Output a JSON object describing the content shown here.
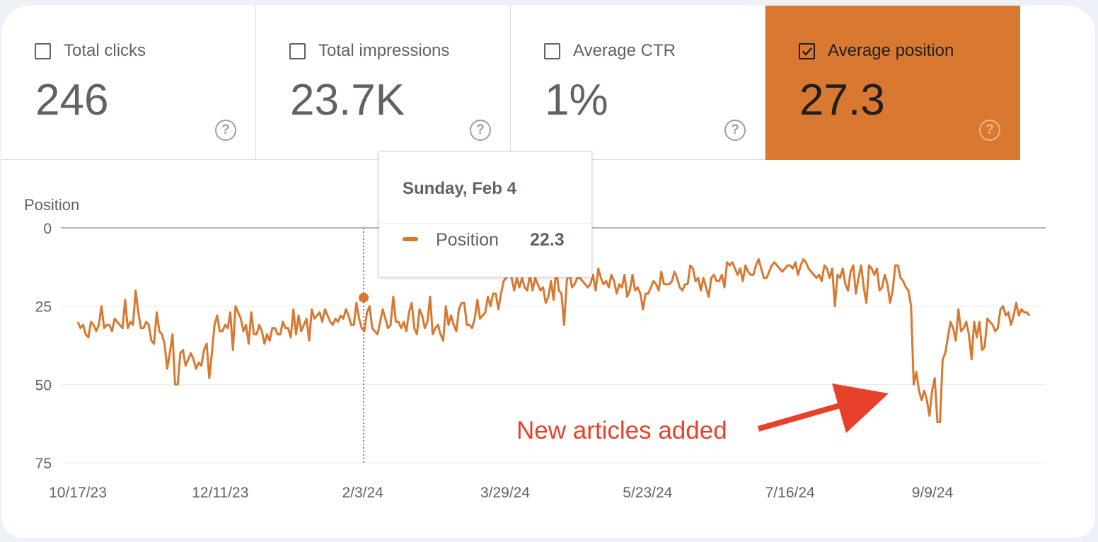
{
  "metrics": [
    {
      "label": "Total clicks",
      "value": "246",
      "checked": false,
      "help_icon": "help-circle-icon"
    },
    {
      "label": "Total impressions",
      "value": "23.7K",
      "checked": false,
      "help_icon": "help-circle-icon"
    },
    {
      "label": "Average CTR",
      "value": "1%",
      "checked": false,
      "help_icon": "help-circle-icon"
    },
    {
      "label": "Average position",
      "value": "27.3",
      "checked": true,
      "help_icon": "help-circle-icon"
    }
  ],
  "colors": {
    "accent": "#d97830",
    "annotation": "#e8412b",
    "grid": "#e8eaed",
    "axis_text": "#5f6368"
  },
  "tooltip": {
    "date": "Sunday, Feb 4",
    "series": "Position",
    "value": "22.3"
  },
  "annotation": {
    "text": "New articles added"
  },
  "chart_data": {
    "type": "line",
    "ylabel": "Position",
    "y_reversed": true,
    "ylim": [
      0,
      75
    ],
    "y_ticks": [
      "0",
      "25",
      "50",
      "75"
    ],
    "x_tick_labels": [
      "10/17/23",
      "12/11/23",
      "2/3/24",
      "3/29/24",
      "5/23/24",
      "7/16/24",
      "9/9/24"
    ],
    "x_range": [
      "10/17/23",
      "10/16/24"
    ],
    "grid": true,
    "series": [
      {
        "values": [
          30,
          32,
          31,
          34,
          35,
          30,
          31,
          33,
          31,
          25,
          32,
          31,
          31,
          33,
          29,
          30,
          31,
          32,
          23,
          32,
          30,
          31,
          20,
          27,
          32,
          32,
          30,
          31,
          36,
          37,
          27,
          33,
          34,
          37,
          45,
          40,
          34,
          50,
          50,
          40,
          39,
          44,
          42,
          40,
          42,
          45,
          43,
          44,
          39,
          37,
          48,
          40,
          31,
          28,
          33,
          33,
          31,
          32,
          27,
          39,
          25,
          27,
          29,
          33,
          31,
          37,
          27,
          34,
          34,
          31,
          33,
          37,
          34,
          36,
          32,
          32,
          34,
          34,
          30,
          32,
          32,
          35,
          26,
          34,
          28,
          33,
          31,
          29,
          36,
          26,
          29,
          28,
          27,
          30,
          26,
          28,
          30,
          31,
          29,
          30,
          28,
          29,
          26,
          28,
          31,
          31,
          24,
          29,
          32,
          33,
          27,
          25,
          32,
          33,
          34,
          30,
          26,
          29,
          32,
          31,
          22,
          30,
          30,
          32,
          30,
          33,
          27,
          24,
          32,
          34,
          26,
          28,
          32,
          30,
          22,
          34,
          32,
          31,
          34,
          36,
          25,
          31,
          28,
          31,
          33,
          26,
          24,
          24,
          31,
          31,
          32,
          29,
          23,
          29,
          28,
          27,
          22,
          25,
          21,
          21,
          26,
          21,
          17,
          16,
          14,
          16,
          20,
          16,
          19,
          16,
          19,
          20,
          15,
          20,
          16,
          18,
          20,
          19,
          24,
          22,
          17,
          23,
          13,
          20,
          21,
          31,
          17,
          14,
          19,
          18,
          16,
          16,
          17,
          18,
          19,
          18,
          15,
          20,
          13,
          16,
          18,
          17,
          19,
          15,
          17,
          21,
          18,
          19,
          15,
          22,
          20,
          15,
          20,
          19,
          21,
          26,
          21,
          21,
          19,
          17,
          18,
          20,
          14,
          18,
          18,
          18,
          17,
          14,
          16,
          19,
          20,
          18,
          18,
          12,
          13,
          17,
          16,
          20,
          16,
          19,
          22,
          16,
          15,
          17,
          17,
          15,
          19,
          11,
          12,
          11,
          13,
          15,
          13,
          17,
          12,
          14,
          15,
          15,
          12,
          10,
          13,
          16,
          16,
          14,
          12,
          11,
          12,
          13,
          14,
          13,
          12,
          12,
          13,
          11,
          15,
          12,
          10,
          11,
          13,
          14,
          15,
          16,
          15,
          17,
          12,
          13,
          16,
          13,
          25,
          15,
          16,
          13,
          18,
          20,
          14,
          12,
          21,
          16,
          12,
          19,
          24,
          12,
          13,
          15,
          13,
          20,
          19,
          15,
          18,
          24,
          20,
          12,
          12,
          16,
          17,
          19,
          20,
          25,
          50,
          46,
          52,
          55,
          52,
          55,
          60,
          52,
          48,
          62,
          62,
          42,
          40,
          35,
          30,
          32,
          36,
          26,
          33,
          32,
          30,
          34,
          42,
          30,
          35,
          30,
          39,
          38,
          29,
          30,
          31,
          33,
          32,
          26,
          25,
          28,
          27,
          31,
          28,
          24,
          28,
          26,
          27,
          27,
          28
        ]
      }
    ]
  }
}
